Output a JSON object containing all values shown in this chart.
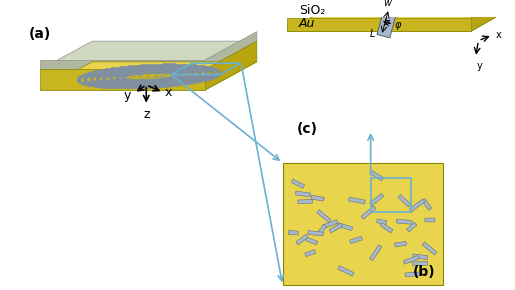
{
  "bg_color": "#ffffff",
  "gold_color": "#E8D44D",
  "gold_dark": "#C8B520",
  "gold_side": "#B8A510",
  "substrate_color": "#D0D8C0",
  "substrate_side": "#B0B8A0",
  "nanorod_color": "#A8B8C8",
  "arrow_color": "#6AB0D0",
  "dot_color": "#8090A0",
  "spiral_color": "#8090A8",
  "panel_a_label": "(a)",
  "panel_b_label": "(b)",
  "panel_c_label": "(c)",
  "axis_color": "#000000",
  "label_fontsize": 10,
  "axis_label_fontsize": 9,
  "annotation_fontsize": 8
}
